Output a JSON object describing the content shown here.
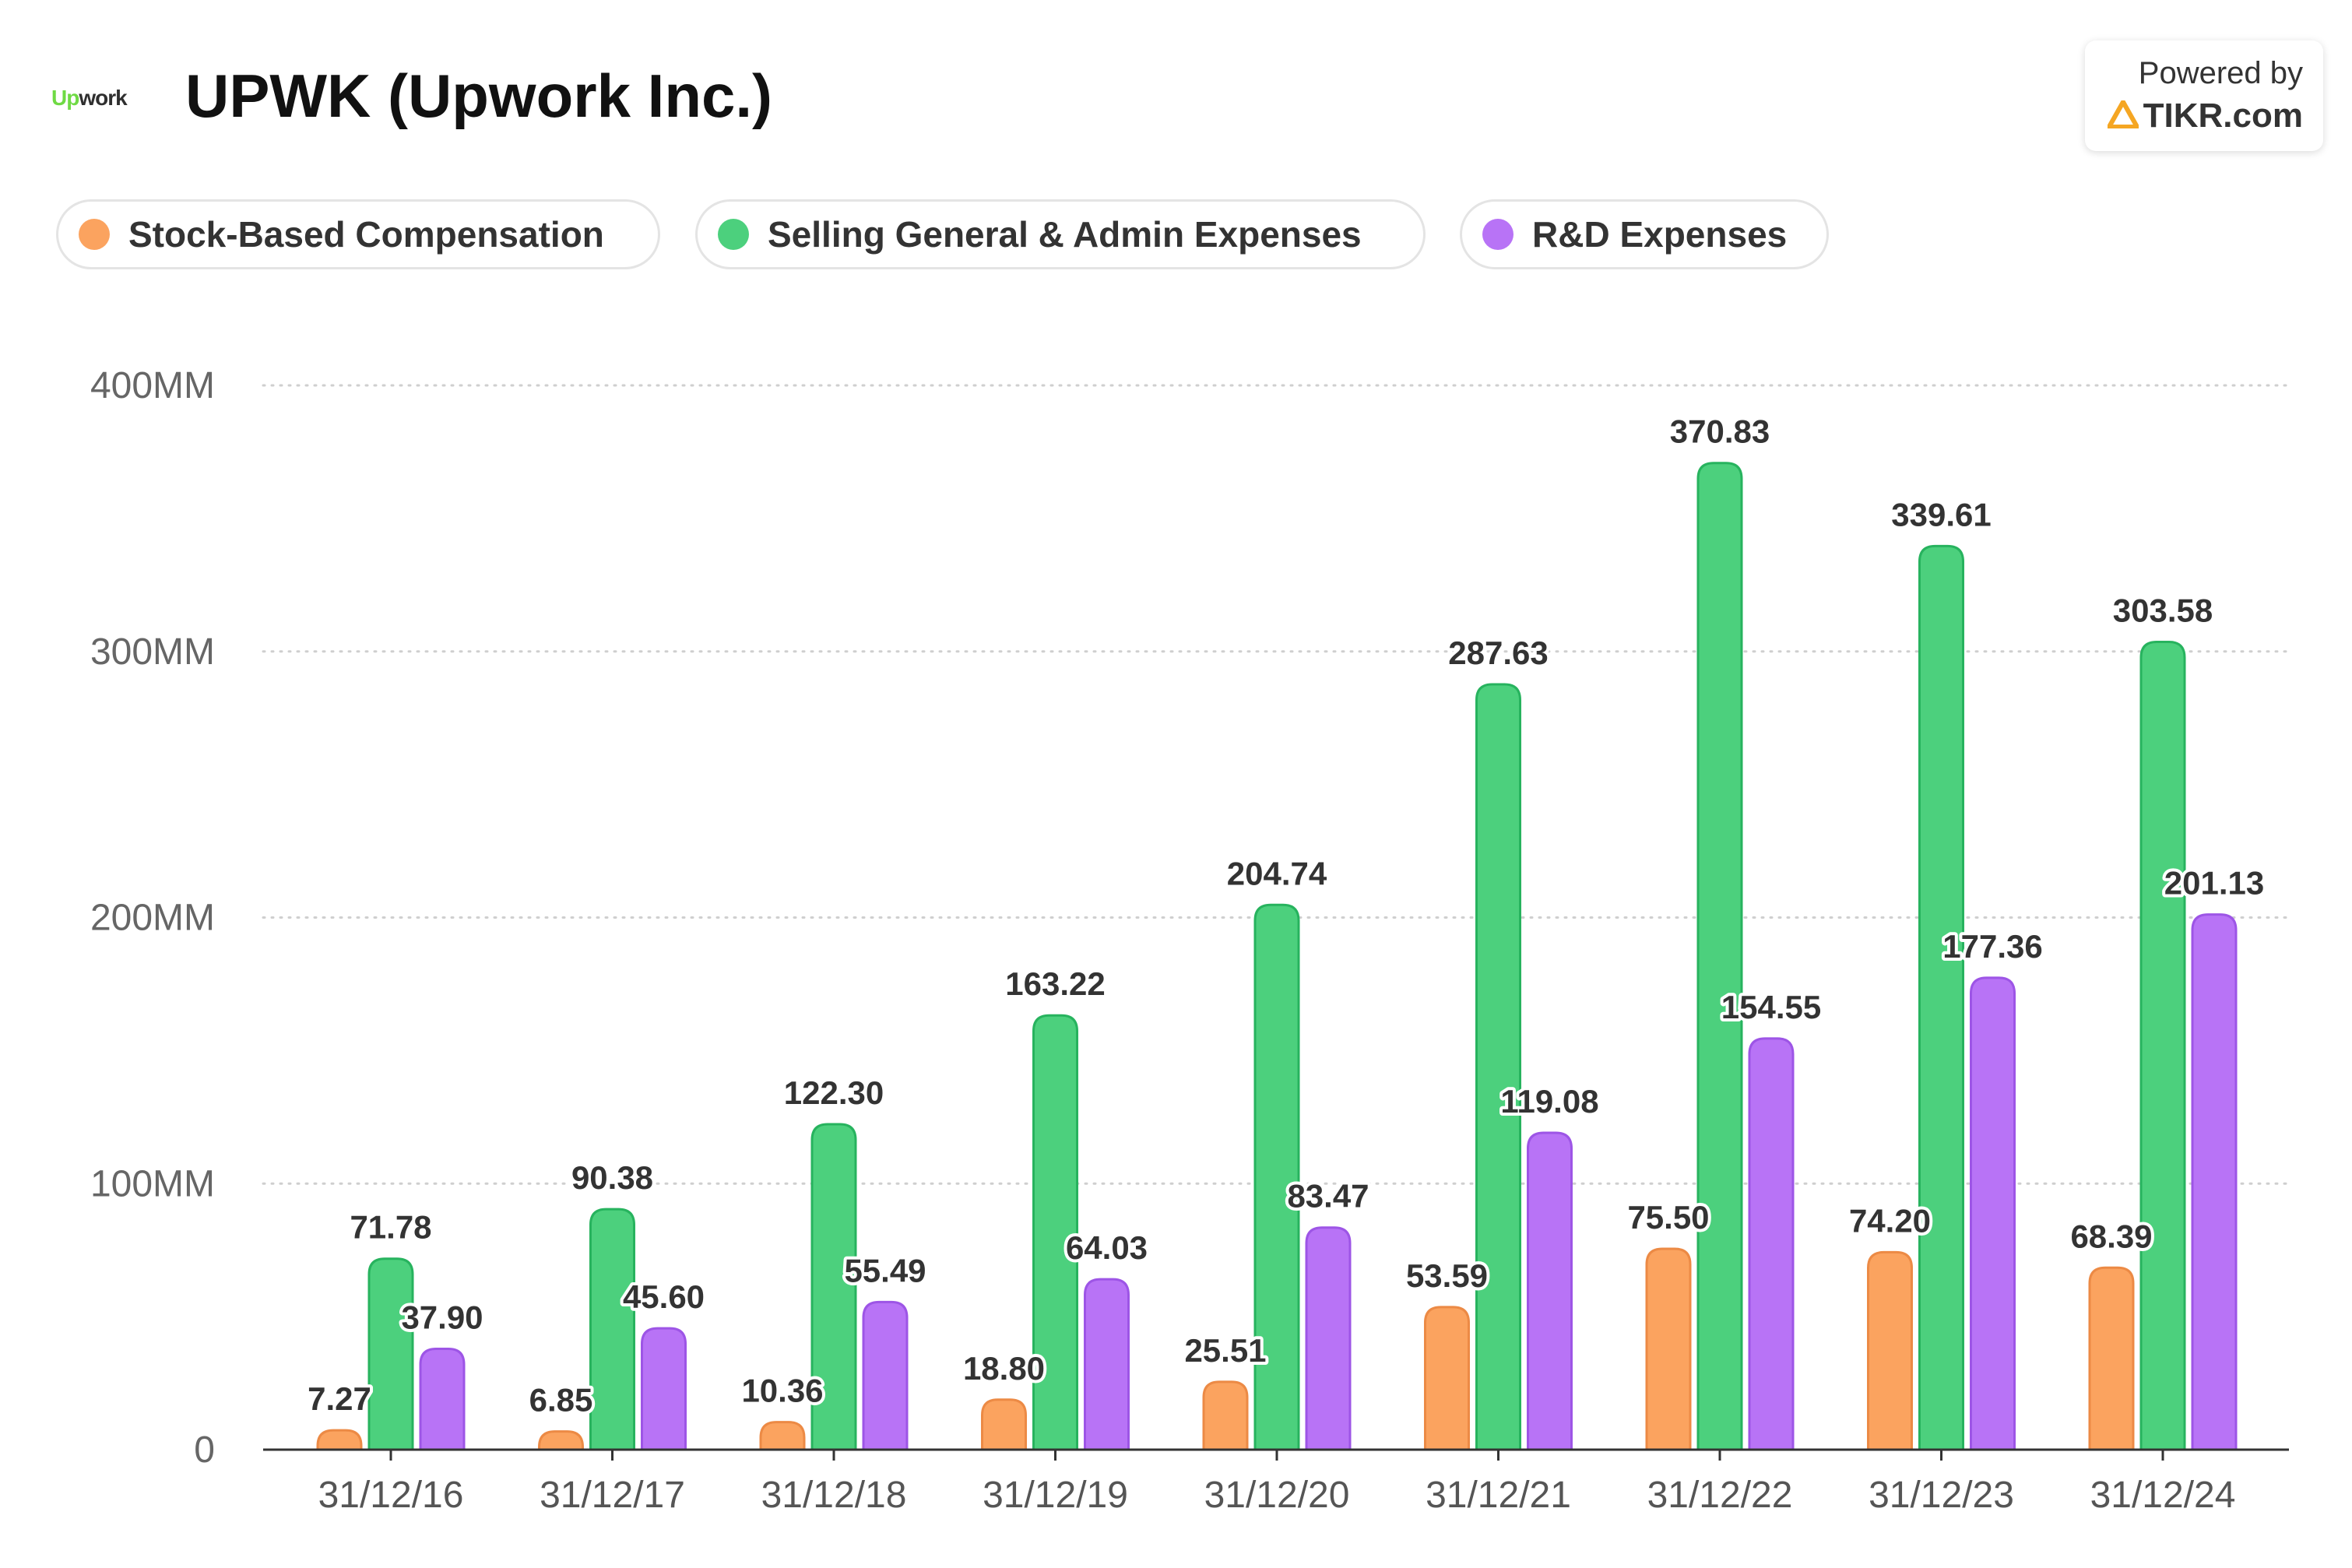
{
  "header": {
    "logo_text_up": "Up",
    "logo_text_rest": "work",
    "title": "UPWK (Upwork Inc.)"
  },
  "powered": {
    "line1": "Powered by",
    "line2": "TIKR.com",
    "icon": "tikr-logo-icon"
  },
  "colors": {
    "sbc": "#fba35f",
    "sga": "#4cd07d",
    "rnd": "#b873f6",
    "sbc_stroke": "#ec8a45",
    "sga_stroke": "#27b35e",
    "rnd_stroke": "#9d55e6"
  },
  "chart_data": {
    "type": "bar",
    "categories": [
      "31/12/16",
      "31/12/17",
      "31/12/18",
      "31/12/19",
      "31/12/20",
      "31/12/21",
      "31/12/22",
      "31/12/23",
      "31/12/24"
    ],
    "series": [
      {
        "key": "sbc",
        "name": "Stock-Based Compensation",
        "values": [
          7.27,
          6.85,
          10.36,
          18.8,
          25.51,
          53.59,
          75.5,
          74.2,
          68.39
        ],
        "labels": [
          "7.27",
          "6.85",
          "10.36",
          "18.80",
          "25.51",
          "53.59",
          "75.50",
          "74.20",
          "68.39"
        ]
      },
      {
        "key": "sga",
        "name": "Selling General & Admin Expenses",
        "values": [
          71.78,
          90.38,
          122.3,
          163.22,
          204.74,
          287.63,
          370.83,
          339.61,
          303.58
        ],
        "labels": [
          "71.78",
          "90.38",
          "122.30",
          "163.22",
          "204.74",
          "287.63",
          "370.83",
          "339.61",
          "303.58"
        ]
      },
      {
        "key": "rnd",
        "name": "R&D Expenses",
        "values": [
          37.9,
          45.6,
          55.49,
          64.03,
          83.47,
          119.08,
          154.55,
          177.36,
          201.13
        ],
        "labels": [
          "37.90",
          "45.60",
          "55.49",
          "64.03",
          "83.47",
          "119.08",
          "154.55",
          "177.36",
          "201.13"
        ]
      }
    ],
    "yticks": [
      0,
      100,
      200,
      300,
      400
    ],
    "ytick_labels": [
      "0",
      "100MM",
      "200MM",
      "300MM",
      "400MM"
    ],
    "ylim": [
      0,
      400
    ],
    "title": "UPWK (Upwork Inc.)",
    "legend_position": "top-left",
    "grid": "horizontal-dotted"
  }
}
